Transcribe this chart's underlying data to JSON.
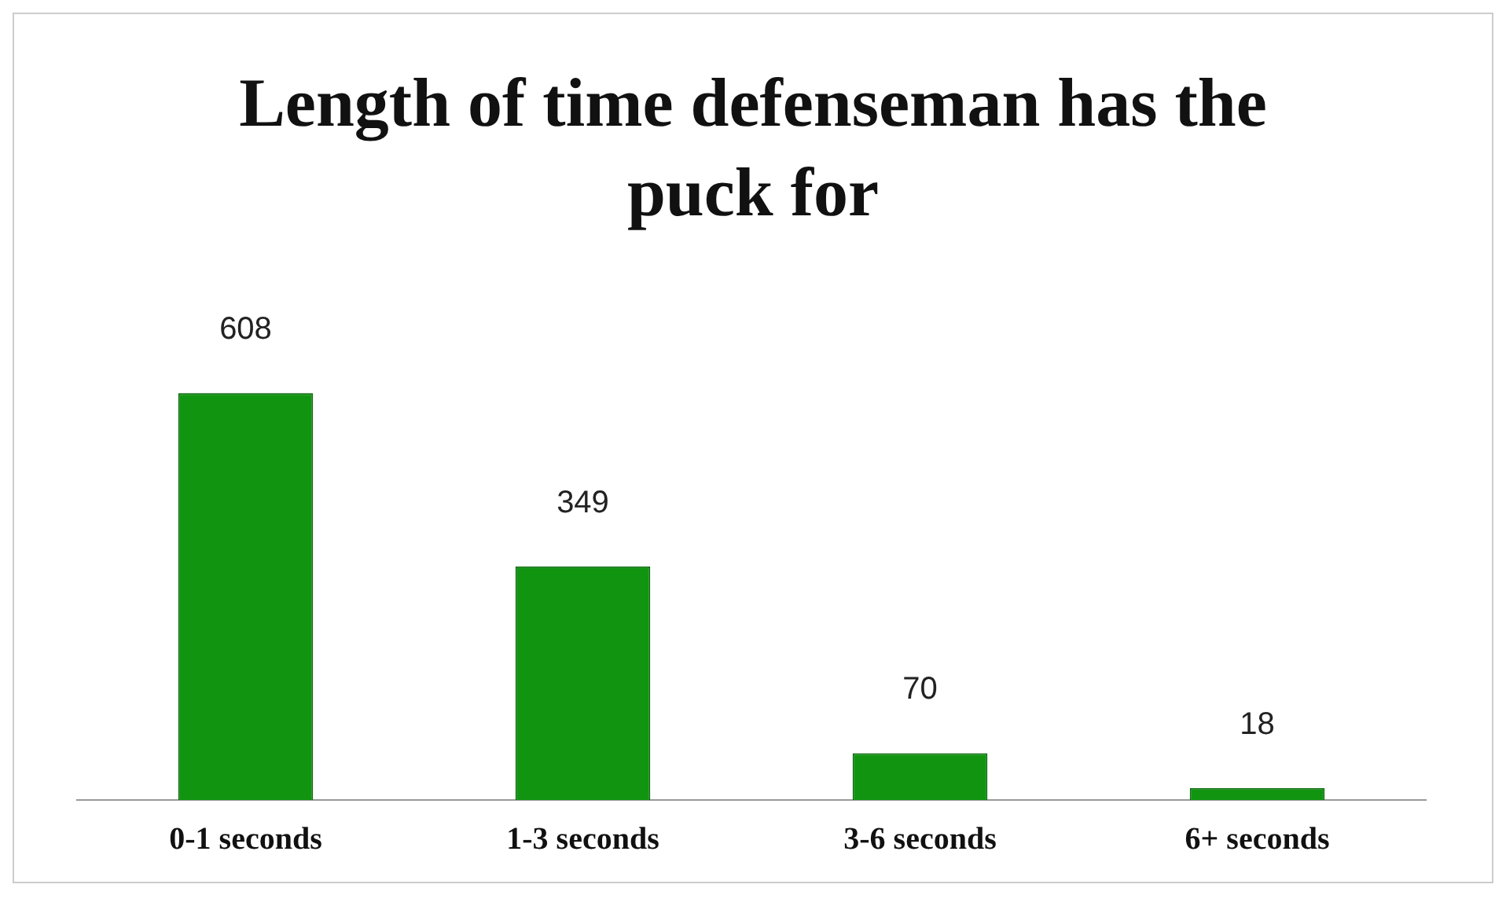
{
  "chart_data": {
    "type": "bar",
    "title": "Length of  time defenseman has the puck for",
    "categories": [
      "0-1 seconds",
      "1-3 seconds",
      "3-6 seconds",
      "6+ seconds"
    ],
    "values": [
      608,
      349,
      70,
      18
    ],
    "color": "#119511",
    "data_labels": true,
    "grid": false,
    "legend": false
  }
}
